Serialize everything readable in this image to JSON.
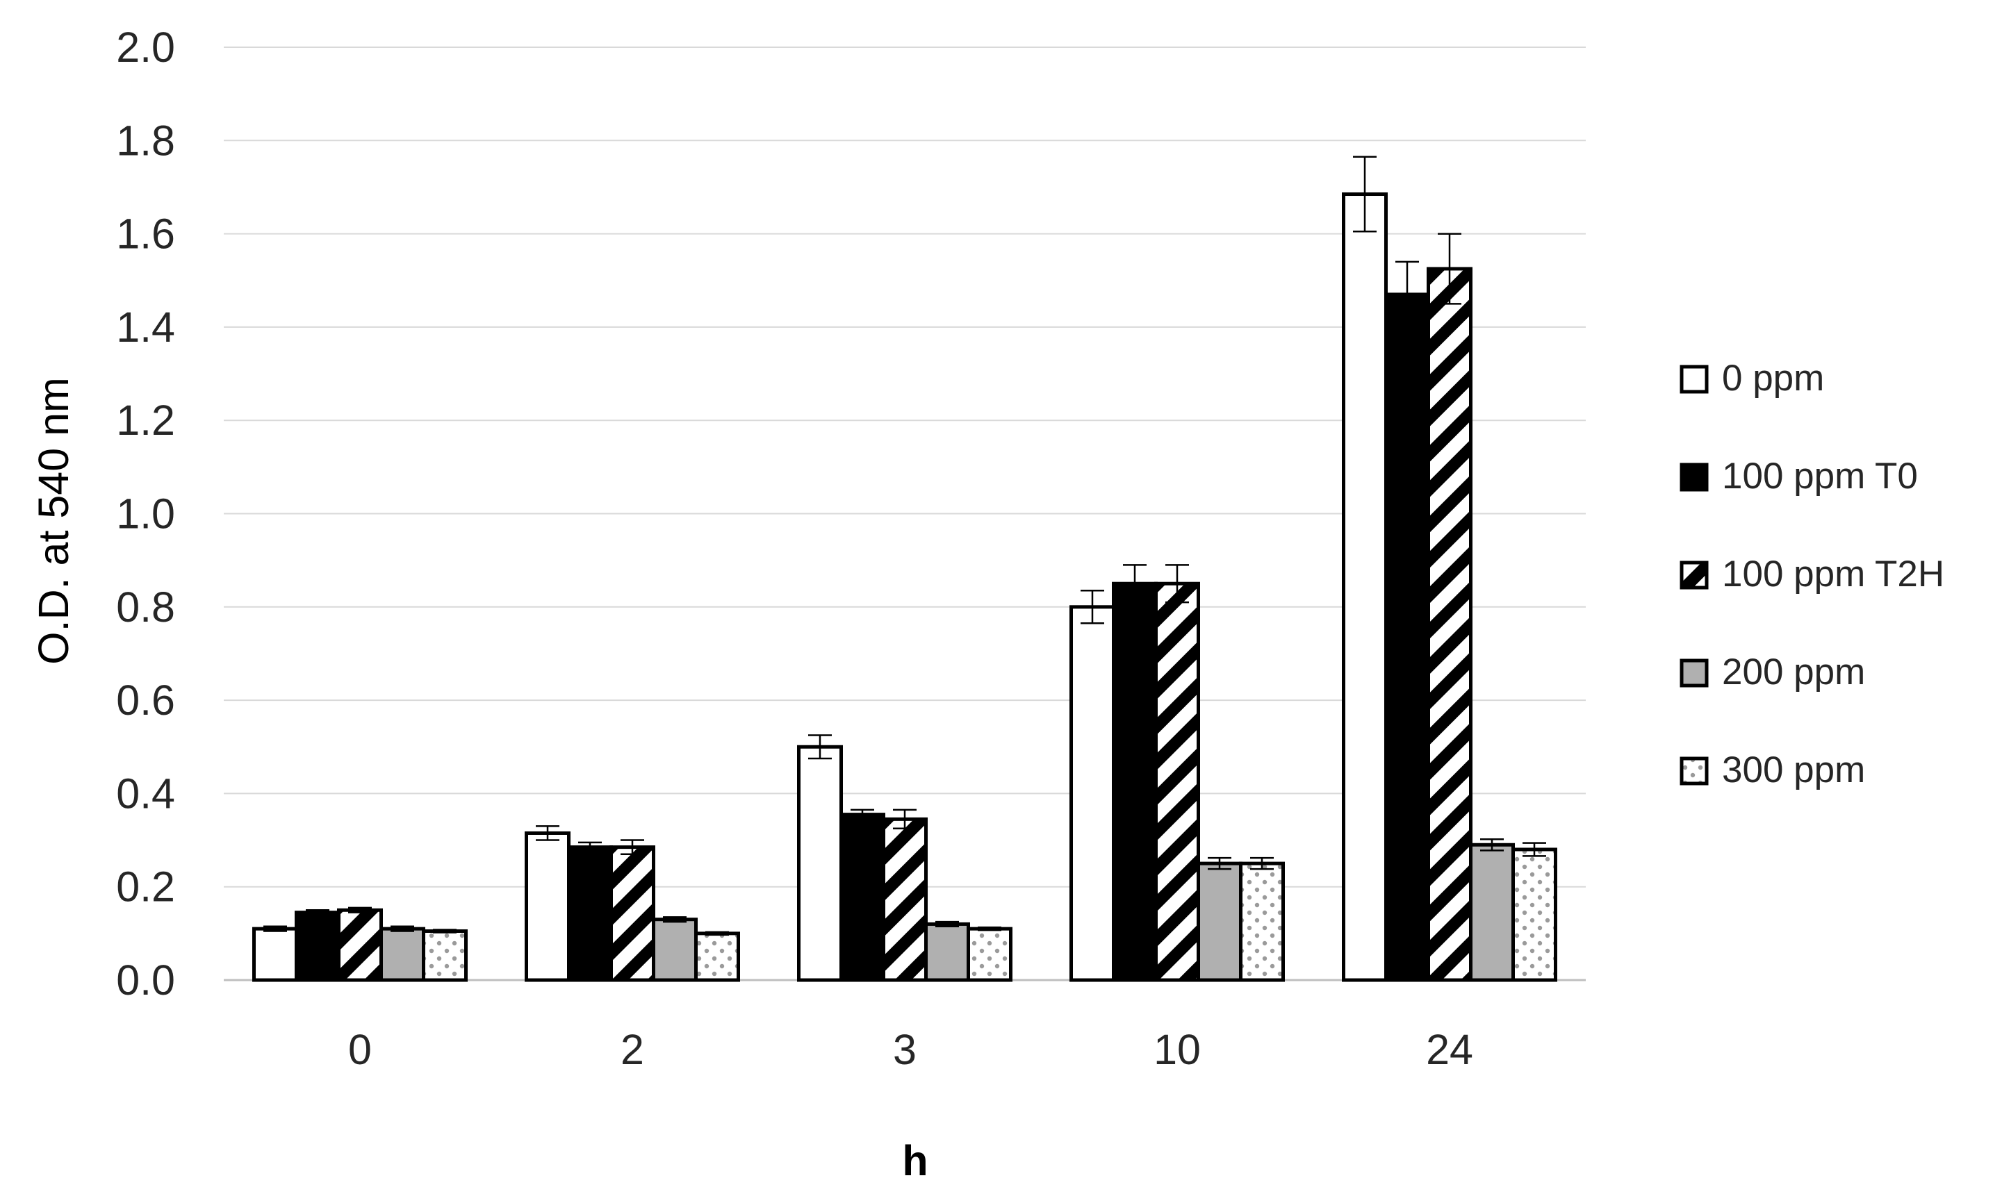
{
  "chart_data": {
    "type": "bar",
    "title": "",
    "xlabel": "h",
    "ylabel": "O.D. at 540 nm",
    "categories": [
      "0",
      "2",
      "3",
      "10",
      "24"
    ],
    "ylim": [
      0,
      2.0
    ],
    "yticks": [
      0.0,
      0.2,
      0.4,
      0.6,
      0.8,
      1.0,
      1.2,
      1.4,
      1.6,
      1.8,
      2.0
    ],
    "ytick_labels": [
      "0.0",
      "0.2",
      "0.4",
      "0.6",
      "0.8",
      "1.0",
      "1.2",
      "1.4",
      "1.6",
      "1.8",
      "2.0"
    ],
    "grid": "horizontal",
    "legend_position": "right",
    "series": [
      {
        "name": "0 ppm",
        "fill": "white",
        "values": [
          0.11,
          0.315,
          0.5,
          0.8,
          1.685
        ],
        "errors": [
          0.005,
          0.015,
          0.025,
          0.035,
          0.08
        ]
      },
      {
        "name": "100 ppm T0",
        "fill": "black",
        "values": [
          0.145,
          0.285,
          0.355,
          0.85,
          1.47
        ],
        "errors": [
          0.005,
          0.01,
          0.01,
          0.04,
          0.07
        ]
      },
      {
        "name": "100 ppm T2H",
        "fill": "diagonal-hatch",
        "values": [
          0.15,
          0.285,
          0.345,
          0.85,
          1.525
        ],
        "errors": [
          0.005,
          0.015,
          0.02,
          0.04,
          0.075
        ]
      },
      {
        "name": "200 ppm",
        "fill": "gray",
        "values": [
          0.11,
          0.13,
          0.12,
          0.25,
          0.29
        ],
        "errors": [
          0.005,
          0.005,
          0.005,
          0.012,
          0.012
        ]
      },
      {
        "name": "300 ppm",
        "fill": "dotted",
        "values": [
          0.105,
          0.1,
          0.11,
          0.25,
          0.28
        ],
        "errors": [
          0.003,
          0.003,
          0.003,
          0.012,
          0.014
        ]
      }
    ],
    "colors": {
      "outline": "#000000",
      "gray_fill": "#b0b0b0",
      "grid": "#d9d9d9",
      "axis_line": "#bfbfbf",
      "dot": "#9a9a9a"
    }
  }
}
